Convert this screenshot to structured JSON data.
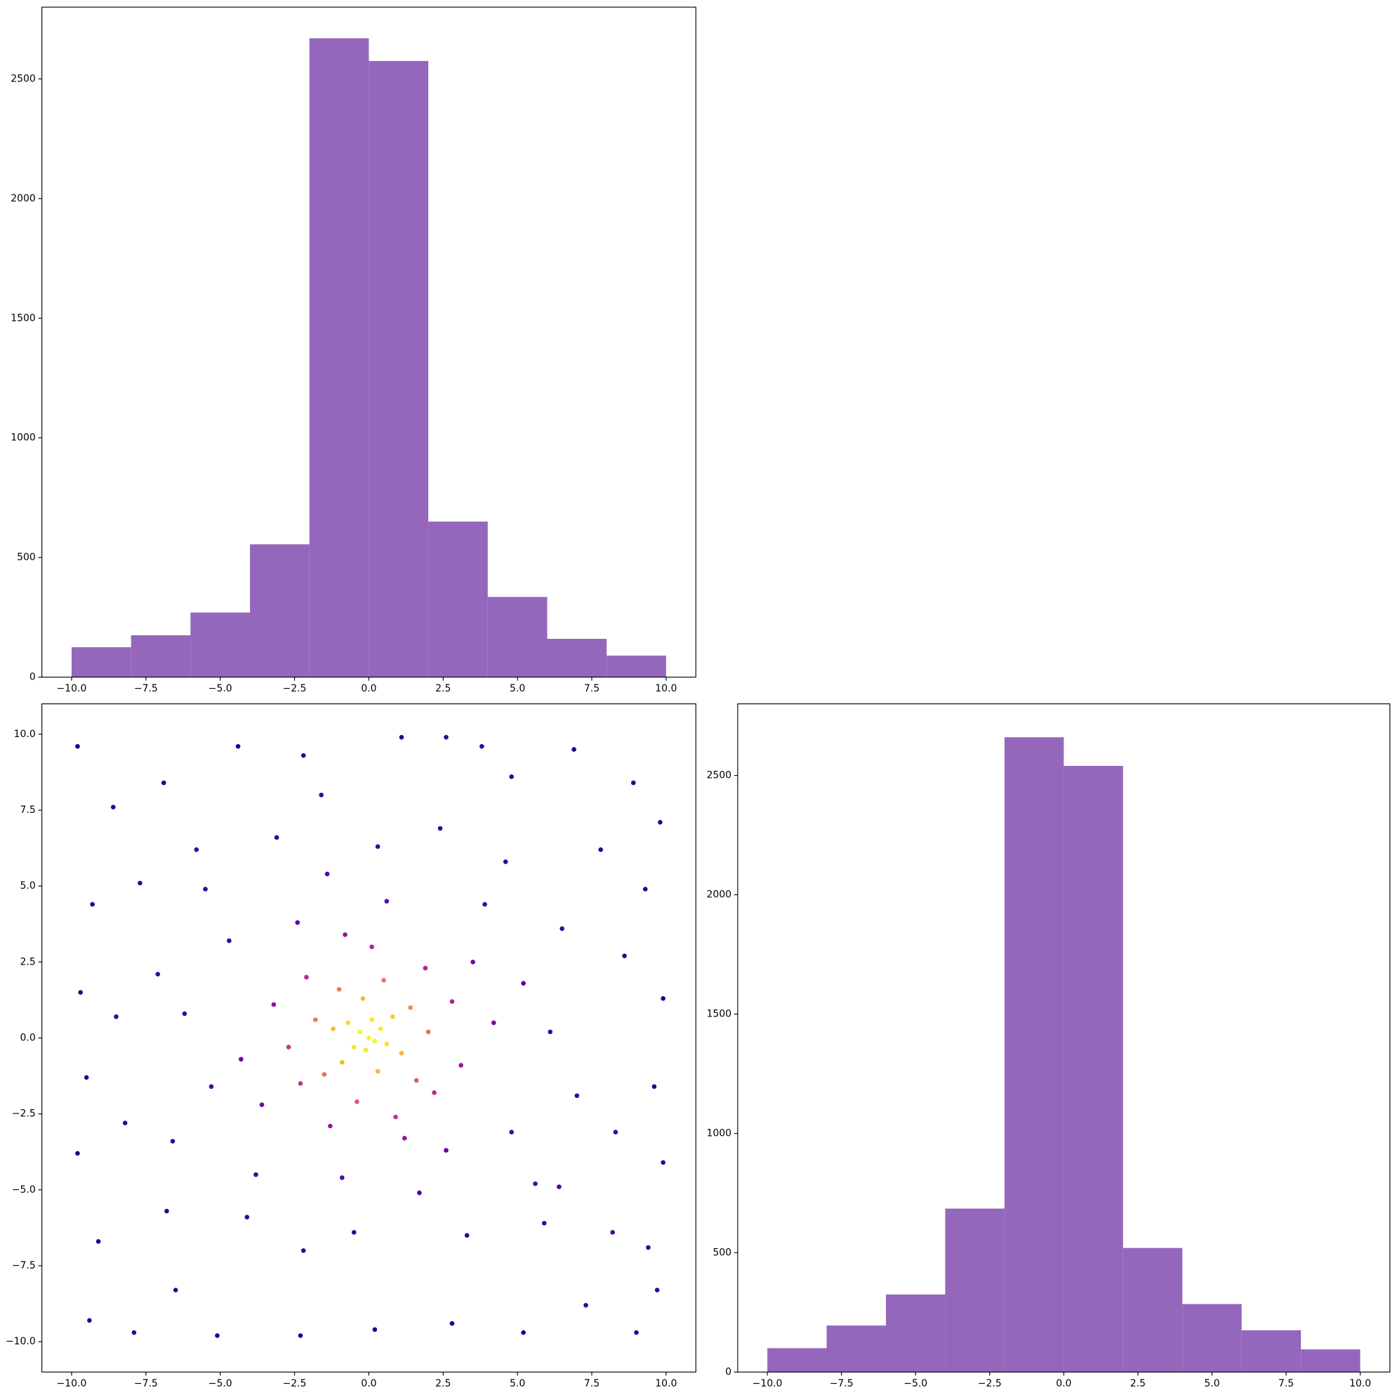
{
  "chart_data": [
    {
      "type": "histogram",
      "color": "#9467bd",
      "bins": [
        -10,
        -8,
        -6,
        -4,
        -2,
        0,
        2,
        4,
        6,
        8,
        10
      ],
      "values": [
        125,
        175,
        270,
        555,
        2670,
        2575,
        650,
        335,
        160,
        90
      ],
      "xlim": [
        -11,
        11
      ],
      "ylim": [
        0,
        2800
      ],
      "xticks": [
        {
          "value": -10,
          "label": "−10.0"
        },
        {
          "value": -7.5,
          "label": "−7.5"
        },
        {
          "value": -5,
          "label": "−5.0"
        },
        {
          "value": -2.5,
          "label": "−2.5"
        },
        {
          "value": 0,
          "label": "0.0"
        },
        {
          "value": 2.5,
          "label": "2.5"
        },
        {
          "value": 5,
          "label": "5.0"
        },
        {
          "value": 7.5,
          "label": "7.5"
        },
        {
          "value": 10,
          "label": "10.0"
        }
      ],
      "yticks": [
        0,
        500,
        1000,
        1500,
        2000,
        2500
      ]
    },
    {
      "type": "scatter",
      "colormap": "plasma",
      "x": [
        0,
        0.2,
        -0.3,
        0.4,
        -0.1,
        0.6,
        -0.5,
        0.1,
        -0.7,
        0.8,
        -0.9,
        1.1,
        -1.2,
        0.3,
        -0.2,
        1.4,
        -1.5,
        1.6,
        -1.0,
        0.5,
        -1.8,
        2.0,
        -0.4,
        2.2,
        -2.3,
        1.9,
        -2.1,
        0.9,
        -2.7,
        2.8,
        -1.3,
        0.1,
        3.1,
        -3.2,
        1.2,
        -0.8,
        3.5,
        -3.6,
        2.6,
        -2.4,
        4.2,
        -4.3,
        0.6,
        -0.9,
        4.8,
        -4.7,
        3.9,
        -3.8,
        5.2,
        -5.3,
        1.7,
        -1.4,
        5.6,
        -5.5,
        4.6,
        -4.1,
        6.1,
        -6.2,
        0.3,
        -0.5,
        6.5,
        -6.6,
        3.3,
        -3.1,
        2.4,
        -2.2,
        7.0,
        -7.1,
        5.9,
        -5.8,
        -9.8,
        -8.6,
        -9.3,
        -9.7,
        -9.5,
        -9.8,
        -9.1,
        -9.4,
        -7.9,
        -6.5,
        -7.7,
        -8.2,
        -4.4,
        -2.2,
        1.1,
        2.6,
        4.8,
        6.9,
        8.9,
        9.8,
        9.3,
        9.9,
        9.6,
        9.9,
        9.4,
        9.7,
        9.0,
        7.3,
        5.2,
        2.8,
        0.2,
        -2.3,
        -5.1,
        8.3,
        8.6,
        8.2,
        -8.5,
        7.8,
        -6.9,
        3.8,
        -1.6,
        6.4,
        -6.8
      ],
      "y": [
        0,
        -0.1,
        0.2,
        0.3,
        -0.4,
        -0.2,
        -0.3,
        0.6,
        0.5,
        0.7,
        -0.8,
        -0.5,
        0.3,
        -1.1,
        1.3,
        1.0,
        -1.2,
        -1.4,
        1.6,
        1.9,
        0.6,
        0.2,
        -2.1,
        -1.8,
        -1.5,
        2.3,
        2.0,
        -2.6,
        -0.3,
        1.2,
        -2.9,
        3.0,
        -0.9,
        1.1,
        -3.3,
        3.4,
        2.5,
        -2.2,
        -3.7,
        3.8,
        0.5,
        -0.7,
        4.5,
        -4.6,
        -3.1,
        3.2,
        4.4,
        -4.5,
        1.8,
        -1.6,
        -5.1,
        5.4,
        -4.8,
        4.9,
        5.8,
        -5.9,
        0.2,
        0.8,
        6.3,
        -6.4,
        3.6,
        -3.4,
        -6.5,
        6.6,
        6.9,
        -7.0,
        -1.9,
        2.1,
        -6.1,
        6.2,
        9.6,
        7.6,
        4.4,
        1.5,
        -1.3,
        -3.8,
        -6.7,
        -9.3,
        -9.7,
        -8.3,
        5.1,
        -2.8,
        9.6,
        9.3,
        9.9,
        9.9,
        8.6,
        9.5,
        8.4,
        7.1,
        4.9,
        1.3,
        -1.6,
        -4.1,
        -6.9,
        -8.3,
        -9.7,
        -8.8,
        -9.7,
        -9.4,
        -9.6,
        -9.8,
        -9.8,
        -3.1,
        2.7,
        -6.4,
        0.7,
        6.2,
        8.4,
        9.6,
        8.0,
        -4.9,
        -5.7
      ],
      "xlim": [
        -11,
        11
      ],
      "ylim": [
        -11,
        11
      ],
      "xticks": [
        {
          "value": -10,
          "label": "−10.0"
        },
        {
          "value": -7.5,
          "label": "−7.5"
        },
        {
          "value": -5,
          "label": "−5.0"
        },
        {
          "value": -2.5,
          "label": "−2.5"
        },
        {
          "value": 0,
          "label": "0.0"
        },
        {
          "value": 2.5,
          "label": "2.5"
        },
        {
          "value": 5,
          "label": "5.0"
        },
        {
          "value": 7.5,
          "label": "7.5"
        },
        {
          "value": 10,
          "label": "10.0"
        }
      ],
      "yticks": [
        {
          "value": -10,
          "label": "−10.0"
        },
        {
          "value": -7.5,
          "label": "−7.5"
        },
        {
          "value": -5,
          "label": "−5.0"
        },
        {
          "value": -2.5,
          "label": "−2.5"
        },
        {
          "value": 0,
          "label": "0.0"
        },
        {
          "value": 2.5,
          "label": "2.5"
        },
        {
          "value": 5,
          "label": "5.0"
        },
        {
          "value": 7.5,
          "label": "7.5"
        },
        {
          "value": 10,
          "label": "10.0"
        }
      ]
    },
    {
      "type": "histogram",
      "color": "#9467bd",
      "bins": [
        -10,
        -8,
        -6,
        -4,
        -2,
        0,
        2,
        4,
        6,
        8,
        10
      ],
      "values": [
        100,
        195,
        325,
        685,
        2660,
        2540,
        520,
        285,
        175,
        95
      ],
      "xlim": [
        -11,
        11
      ],
      "ylim": [
        0,
        2800
      ],
      "xticks": [
        {
          "value": -10,
          "label": "−10.0"
        },
        {
          "value": -7.5,
          "label": "−7.5"
        },
        {
          "value": -5,
          "label": "−5.0"
        },
        {
          "value": -2.5,
          "label": "−2.5"
        },
        {
          "value": 0,
          "label": "0.0"
        },
        {
          "value": 2.5,
          "label": "2.5"
        },
        {
          "value": 5,
          "label": "5.0"
        },
        {
          "value": 7.5,
          "label": "7.5"
        },
        {
          "value": 10,
          "label": "10.0"
        }
      ],
      "yticks": [
        0,
        500,
        1000,
        1500,
        2000,
        2500
      ]
    }
  ]
}
